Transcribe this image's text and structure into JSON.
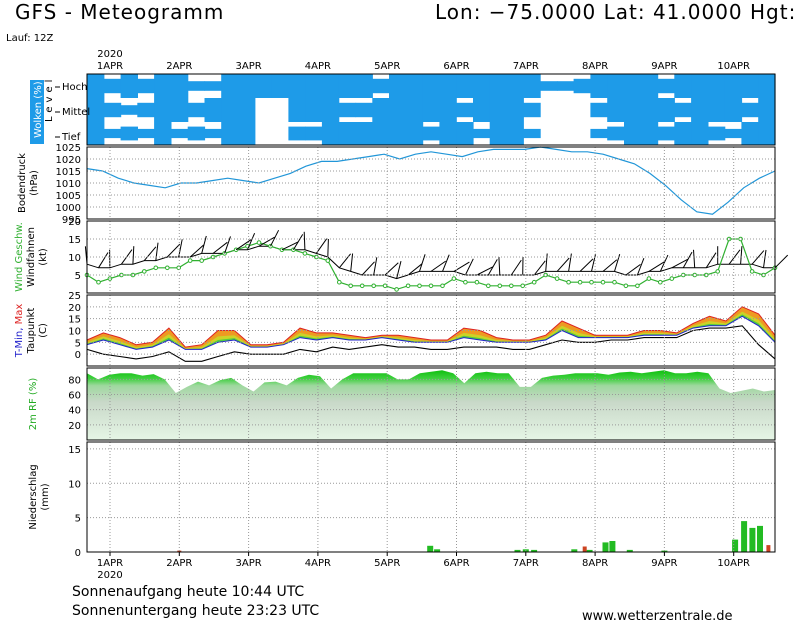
{
  "header": {
    "title": "GFS - Meteogramm",
    "coords": "Lon: −75.0000  Lat: 41.0000  Hgt:",
    "run": "Lauf: 12Z"
  },
  "footer": {
    "sunrise": "Sonnenaufgang heute 10:44 UTC",
    "sunset": "Sonnenuntergang heute 23:23 UTC",
    "website": "www.wetterzentrale.de"
  },
  "colors": {
    "cloud": "#1e9be8",
    "pressure": "#2196d8",
    "wind": "#30b030",
    "humidity_dark": "#20c020",
    "humidity_light": "#e6f6e6",
    "precip_rain": "#22bb22",
    "precip_conv": "#cc4422",
    "temp_fill_orange": "#ee9922",
    "temp_fill_yellow": "#c8d828",
    "temp_fill_green": "#44cc44",
    "tmin": "#2222cc",
    "tmax": "#dd2222"
  },
  "chart_data": {
    "type": "meteogram",
    "year_label": "2020",
    "dates": [
      "1APR",
      "2APR",
      "3APR",
      "4APR",
      "5APR",
      "6APR",
      "7APR",
      "8APR",
      "9APR",
      "10APR"
    ],
    "x_range_days": [
      0,
      9.93
    ],
    "panels": {
      "clouds": {
        "label": "Wolken (%)",
        "sublabel": "Level",
        "levels": [
          "Hoch",
          "Mittel",
          "Tief"
        ],
        "cover_pct": {
          "hoch": [
            100,
            60,
            100,
            60,
            100,
            100,
            40,
            40,
            100,
            100,
            100,
            100,
            100,
            100,
            100,
            100,
            100,
            60,
            100,
            100,
            100,
            100,
            100,
            100,
            100,
            100,
            100,
            40,
            40,
            60,
            100,
            100,
            100,
            100,
            60,
            100,
            100,
            100,
            100,
            100,
            100
          ],
          "mittel": [
            100,
            60,
            40,
            60,
            100,
            100,
            60,
            100,
            100,
            100,
            0,
            0,
            100,
            100,
            100,
            60,
            60,
            100,
            100,
            100,
            100,
            100,
            60,
            100,
            100,
            100,
            60,
            0,
            0,
            0,
            60,
            100,
            100,
            100,
            100,
            60,
            100,
            100,
            100,
            60,
            100
          ],
          "tief": [
            100,
            40,
            60,
            40,
            100,
            40,
            60,
            40,
            100,
            100,
            0,
            0,
            60,
            60,
            100,
            100,
            100,
            100,
            100,
            100,
            60,
            100,
            100,
            40,
            100,
            100,
            40,
            0,
            0,
            0,
            40,
            60,
            100,
            100,
            60,
            100,
            100,
            60,
            40,
            100,
            100
          ]
        }
      },
      "pressure": {
        "label": "Bodendruck",
        "unit": "(hPa)",
        "ylim": [
          995,
          1025
        ],
        "ticks": [
          "1025",
          "1020",
          "1015",
          "1010",
          "1005",
          "1000",
          "995"
        ],
        "values": [
          1016,
          1015,
          1012,
          1010,
          1009,
          1008,
          1010,
          1010,
          1011,
          1012,
          1011,
          1010,
          1012,
          1014,
          1017,
          1019,
          1019,
          1020,
          1021,
          1022,
          1020,
          1022,
          1023,
          1022,
          1021,
          1023,
          1024,
          1024,
          1024,
          1025,
          1024,
          1023,
          1023,
          1022,
          1020,
          1018,
          1014,
          1009,
          1003,
          998,
          997,
          1002,
          1008,
          1012,
          1015
        ]
      },
      "wind": {
        "label_colored": "Wind Geschw.",
        "label_black": "Windfahnen",
        "unit": "(kt)",
        "ylim": [
          0,
          20
        ],
        "ticks": [
          "20",
          "15",
          "10",
          "5"
        ],
        "speed_kt": [
          5,
          3,
          4,
          5,
          5,
          6,
          7,
          7,
          7,
          9,
          9,
          10,
          11,
          12,
          13,
          14,
          13,
          12,
          12,
          11,
          10,
          9,
          3,
          2,
          2,
          2,
          2,
          1,
          2,
          2,
          2,
          2,
          4,
          3,
          3,
          2,
          2,
          2,
          2,
          3,
          5,
          4,
          3,
          3,
          3,
          3,
          3,
          2,
          2,
          4,
          3,
          4,
          5,
          5,
          5,
          6,
          15,
          15,
          6,
          5,
          7
        ],
        "ensemble_kt": [
          8,
          7,
          7,
          8,
          8,
          9,
          9,
          10,
          10,
          10,
          11,
          11,
          11,
          12,
          12,
          13,
          13,
          12,
          12,
          12,
          11,
          10,
          7,
          6,
          5,
          5,
          5,
          4,
          5,
          6,
          6,
          6,
          6,
          5,
          5,
          5,
          5,
          5,
          5,
          5,
          6,
          6,
          6,
          6,
          6,
          6,
          6,
          5,
          5,
          6,
          6,
          7,
          7,
          7,
          7,
          8,
          8,
          8,
          8,
          7,
          7
        ]
      },
      "temperature": {
        "label_tmin": "T-Min",
        "label_tmax": "Max",
        "label_dew": "Taupunkt",
        "unit": "(C)",
        "ylim": [
          -5,
          25
        ],
        "ticks": [
          "25",
          "20",
          "15",
          "10",
          "5",
          "0"
        ],
        "tmax": [
          6,
          9,
          7,
          4,
          5,
          11,
          3,
          4,
          10,
          10,
          4,
          4,
          5,
          11,
          9,
          9,
          8,
          7,
          8,
          8,
          7,
          6,
          6,
          11,
          10,
          7,
          6,
          6,
          8,
          14,
          11,
          8,
          8,
          8,
          10,
          10,
          9,
          13,
          16,
          14,
          20,
          17,
          8
        ],
        "tmin": [
          4,
          6,
          4,
          2,
          3,
          6,
          2,
          2,
          5,
          6,
          3,
          3,
          4,
          7,
          6,
          7,
          6,
          6,
          7,
          6,
          5,
          5,
          5,
          7,
          6,
          5,
          5,
          5,
          6,
          10,
          7,
          7,
          7,
          7,
          8,
          8,
          8,
          11,
          12,
          12,
          16,
          12,
          5
        ],
        "dewpoint": [
          2,
          0,
          -1,
          -2,
          -1,
          1,
          -3,
          -3,
          -1,
          1,
          0,
          0,
          0,
          2,
          1,
          3,
          2,
          3,
          4,
          3,
          3,
          2,
          2,
          3,
          3,
          3,
          2,
          2,
          4,
          6,
          5,
          5,
          6,
          6,
          7,
          7,
          7,
          10,
          11,
          11,
          12,
          4,
          -2
        ]
      },
      "humidity": {
        "label": "2m RF (%)",
        "ylim": [
          0,
          95
        ],
        "ticks": [
          "80",
          "60",
          "40",
          "20"
        ],
        "values": [
          88,
          80,
          86,
          88,
          88,
          85,
          87,
          80,
          62,
          70,
          77,
          72,
          79,
          82,
          72,
          64,
          76,
          77,
          72,
          82,
          86,
          84,
          68,
          80,
          88,
          88,
          88,
          88,
          80,
          80,
          88,
          90,
          92,
          88,
          75,
          88,
          90,
          88,
          88,
          70,
          70,
          82,
          85,
          86,
          88,
          88,
          88,
          86,
          89,
          90,
          88,
          90,
          92,
          88,
          88,
          90,
          88,
          68,
          62,
          65,
          68,
          64,
          66
        ]
      },
      "precipitation": {
        "label": "Niederschlag",
        "unit": "(mm)",
        "ylim": [
          0,
          16
        ],
        "ticks": [
          "15",
          "10",
          "5",
          "0"
        ],
        "bars": [
          {
            "day": 4.62,
            "mm": 0.9
          },
          {
            "day": 4.72,
            "mm": 0.4
          },
          {
            "day": 5.88,
            "mm": 0.3
          },
          {
            "day": 6.0,
            "mm": 0.4
          },
          {
            "day": 6.12,
            "mm": 0.3
          },
          {
            "day": 6.7,
            "mm": 0.4
          },
          {
            "day": 6.92,
            "mm": 0.3
          },
          {
            "day": 7.15,
            "mm": 1.4
          },
          {
            "day": 7.25,
            "mm": 1.6
          },
          {
            "day": 7.5,
            "mm": 0.3
          },
          {
            "day": 8.0,
            "mm": 0.2
          },
          {
            "day": 9.02,
            "mm": 1.8
          },
          {
            "day": 9.15,
            "mm": 4.5
          },
          {
            "day": 9.27,
            "mm": 3.5
          },
          {
            "day": 9.38,
            "mm": 3.8
          }
        ],
        "conv_bars": [
          {
            "day": 1.0,
            "mm": 0.2
          },
          {
            "day": 6.85,
            "mm": 0.8
          },
          {
            "day": 9.5,
            "mm": 1.0
          }
        ]
      }
    }
  }
}
